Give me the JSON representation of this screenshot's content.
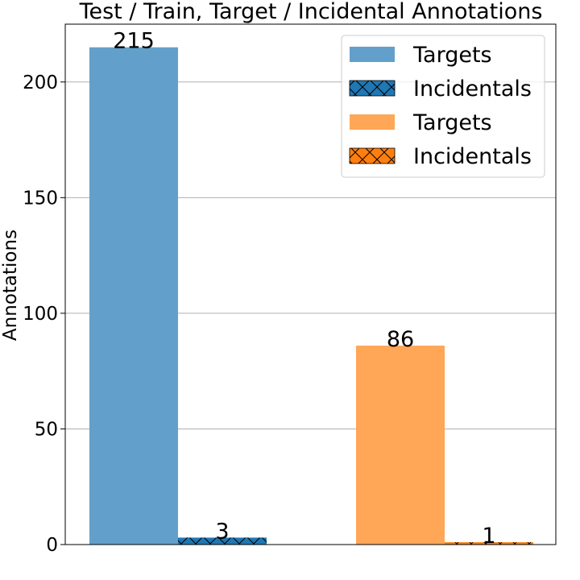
{
  "chart_data": {
    "type": "bar",
    "title": "Test / Train, Target / Incidental Annotations",
    "xlabel": "",
    "ylabel": "Annotations",
    "ylim": [
      0,
      225
    ],
    "yticks": [
      0,
      50,
      100,
      150,
      200
    ],
    "grid": "horizontal",
    "legend_position": "top-right",
    "groups": [
      {
        "bars": [
          {
            "legend": "Targets",
            "value": 215,
            "label": "215",
            "color": "#62a0cb",
            "hatch": "none"
          },
          {
            "legend": "Incidentals",
            "value": 3,
            "label": "3",
            "color": "#1f77b4",
            "hatch": "x"
          }
        ]
      },
      {
        "bars": [
          {
            "legend": "Targets",
            "value": 86,
            "label": "86",
            "color": "#ffa657",
            "hatch": "none"
          },
          {
            "legend": "Incidentals",
            "value": 1,
            "label": "1",
            "color": "#ff7f0e",
            "hatch": "x"
          }
        ]
      }
    ]
  }
}
